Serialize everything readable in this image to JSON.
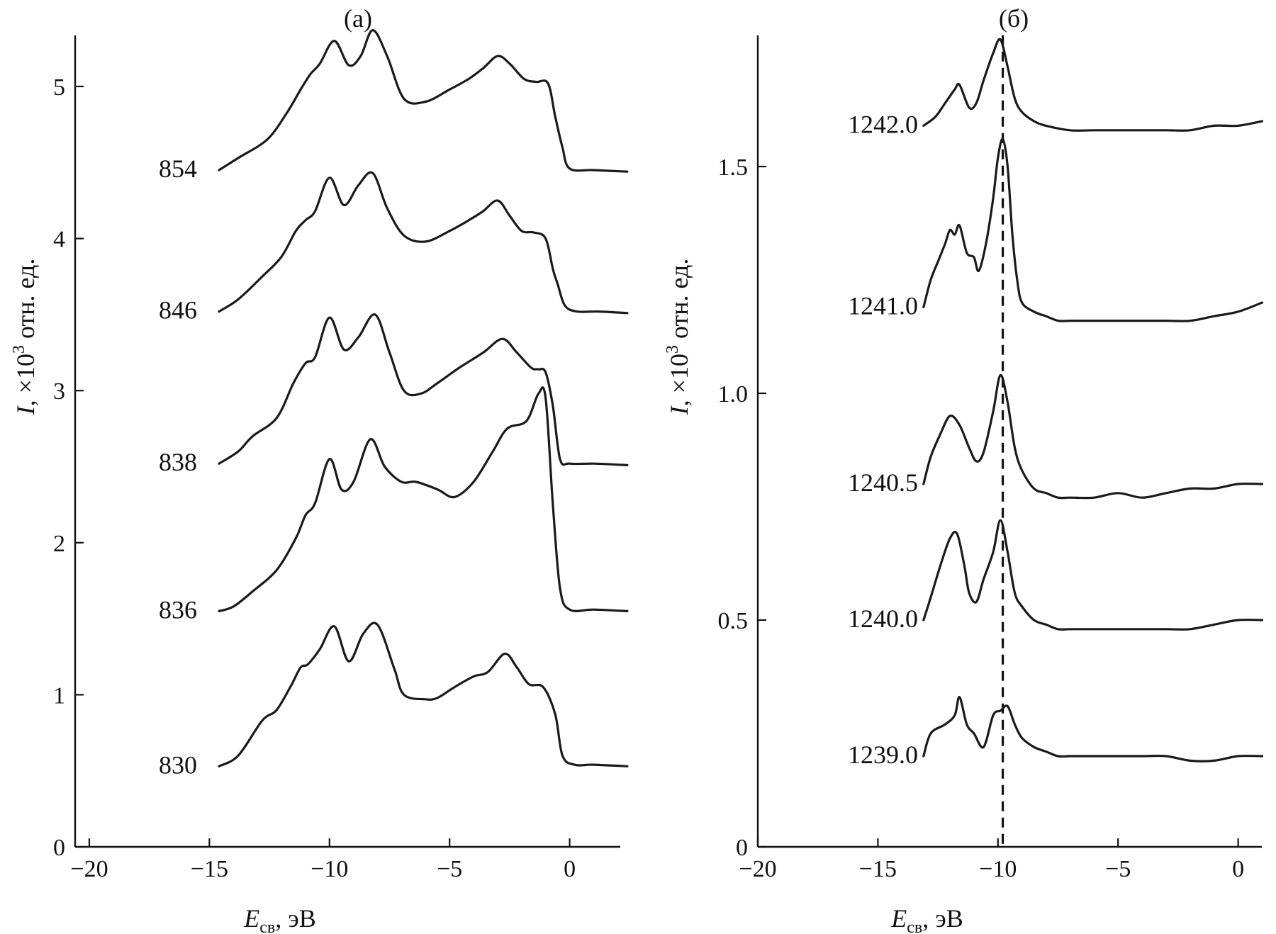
{
  "figure": {
    "y_label_var": "I",
    "y_label_rest": ", ×10",
    "y_label_exp": "3",
    "y_label_unit": " отн. ед.",
    "x_label_var": "E",
    "x_label_sub": "св",
    "x_label_unit": ", эВ"
  },
  "chart_data": [
    {
      "type": "line",
      "title": "(а)",
      "xlabel": "Eсв, эВ",
      "ylabel": "I, ×10^3 отн. ед.",
      "xlim": [
        -20,
        2.8
      ],
      "ylim": [
        0,
        5.5
      ],
      "xticks": [
        -20,
        -15,
        -10,
        -5,
        0
      ],
      "xtick_labels": [
        "−20",
        "−15",
        "−10",
        "−5",
        "0"
      ],
      "yticks": [
        0,
        1,
        2,
        3,
        4,
        5
      ],
      "ytick_labels": [
        "0",
        "1",
        "2",
        "3",
        "4",
        "5"
      ],
      "grid": false,
      "series": [
        {
          "name": "830",
          "x": [
            -14.6,
            -13.8,
            -12.8,
            -12.2,
            -11.6,
            -11.2,
            -10.9,
            -10.4,
            -9.8,
            -9.2,
            -8.6,
            -8.0,
            -7.3,
            -6.9,
            -6.0,
            -5.5,
            -4.8,
            -4.0,
            -3.4,
            -2.7,
            -2.2,
            -1.7,
            -1.1,
            -0.6,
            -0.3,
            0.2,
            1.0,
            2.4
          ],
          "y": [
            0.53,
            0.6,
            0.83,
            0.9,
            1.06,
            1.18,
            1.2,
            1.3,
            1.45,
            1.22,
            1.4,
            1.46,
            1.17,
            1.0,
            0.97,
            0.98,
            1.05,
            1.12,
            1.15,
            1.27,
            1.18,
            1.07,
            1.05,
            0.87,
            0.6,
            0.54,
            0.54,
            0.53
          ]
        },
        {
          "name": "836",
          "x": [
            -14.6,
            -14.0,
            -13.2,
            -12.2,
            -11.4,
            -11.0,
            -10.6,
            -10.0,
            -9.5,
            -9.0,
            -8.3,
            -7.7,
            -7.0,
            -6.4,
            -5.5,
            -4.8,
            -4.0,
            -3.2,
            -2.6,
            -1.8,
            -1.3,
            -1.0,
            -0.7,
            -0.4,
            0.0,
            1.0,
            2.4
          ],
          "y": [
            1.55,
            1.58,
            1.68,
            1.82,
            2.03,
            2.18,
            2.26,
            2.55,
            2.35,
            2.4,
            2.68,
            2.5,
            2.4,
            2.4,
            2.35,
            2.3,
            2.4,
            2.6,
            2.75,
            2.8,
            2.98,
            2.95,
            2.25,
            1.7,
            1.56,
            1.56,
            1.55
          ]
        },
        {
          "name": "838",
          "x": [
            -14.6,
            -13.8,
            -13.2,
            -12.2,
            -11.5,
            -11.0,
            -10.6,
            -10.0,
            -9.4,
            -8.8,
            -8.1,
            -7.5,
            -6.9,
            -6.2,
            -5.5,
            -4.6,
            -3.6,
            -2.8,
            -2.2,
            -1.6,
            -1.3,
            -1.0,
            -0.7,
            -0.4,
            0.0,
            1.0,
            2.4
          ],
          "y": [
            2.52,
            2.6,
            2.7,
            2.82,
            3.05,
            3.18,
            3.22,
            3.48,
            3.27,
            3.35,
            3.5,
            3.25,
            3.0,
            2.98,
            3.05,
            3.15,
            3.25,
            3.34,
            3.25,
            3.15,
            3.14,
            3.12,
            2.9,
            2.55,
            2.52,
            2.52,
            2.51
          ]
        },
        {
          "name": "846",
          "x": [
            -14.6,
            -13.8,
            -12.8,
            -12.0,
            -11.4,
            -11.0,
            -10.6,
            -10.0,
            -9.4,
            -8.8,
            -8.2,
            -7.6,
            -6.9,
            -6.0,
            -5.0,
            -4.2,
            -3.6,
            -3.0,
            -2.5,
            -2.0,
            -1.5,
            -1.0,
            -0.7,
            -0.5,
            -0.2,
            0.3,
            1.2,
            2.4
          ],
          "y": [
            3.52,
            3.6,
            3.75,
            3.88,
            4.05,
            4.12,
            4.18,
            4.4,
            4.22,
            4.35,
            4.43,
            4.2,
            4.02,
            3.98,
            4.05,
            4.12,
            4.18,
            4.25,
            4.15,
            4.05,
            4.04,
            4.0,
            3.8,
            3.7,
            3.56,
            3.52,
            3.52,
            3.51
          ]
        },
        {
          "name": "854",
          "x": [
            -14.6,
            -13.8,
            -12.6,
            -11.8,
            -11.2,
            -10.8,
            -10.4,
            -9.8,
            -9.2,
            -8.7,
            -8.2,
            -7.6,
            -6.9,
            -6.0,
            -5.0,
            -4.2,
            -3.6,
            -3.0,
            -2.5,
            -1.9,
            -1.4,
            -0.9,
            -0.6,
            -0.3,
            0.0,
            1.0,
            2.4
          ],
          "y": [
            4.45,
            4.53,
            4.65,
            4.82,
            4.98,
            5.08,
            5.15,
            5.3,
            5.14,
            5.2,
            5.37,
            5.2,
            4.92,
            4.9,
            4.98,
            5.05,
            5.12,
            5.2,
            5.15,
            5.05,
            5.03,
            5.02,
            4.8,
            4.6,
            4.46,
            4.45,
            4.44
          ]
        }
      ]
    },
    {
      "type": "line",
      "title": "(б)",
      "xlabel": "Eсв, эВ",
      "ylabel": "I, ×10^3 отн. ед.",
      "xlim": [
        -20,
        1.0
      ],
      "ylim": [
        0,
        1.85
      ],
      "xticks": [
        -20,
        -15,
        -10,
        -5,
        0
      ],
      "xtick_labels": [
        "−20",
        "−15",
        "−10",
        "−5",
        "0"
      ],
      "yticks": [
        0,
        0.5,
        1.0,
        1.5
      ],
      "ytick_labels": [
        "0",
        "0.5",
        "1.0",
        "1.5"
      ],
      "grid": false,
      "reference_line_x": -9.8,
      "series": [
        {
          "name": "1239.0",
          "x": [
            -13.1,
            -12.8,
            -12.2,
            -11.8,
            -11.6,
            -11.3,
            -11.0,
            -10.6,
            -10.2,
            -9.9,
            -9.6,
            -9.3,
            -9.0,
            -8.5,
            -8.0,
            -7.5,
            -7.0,
            -6.0,
            -5.0,
            -4.0,
            -3.0,
            -2.0,
            -1.0,
            0.0,
            1.0
          ],
          "y": [
            0.2,
            0.25,
            0.27,
            0.29,
            0.33,
            0.27,
            0.25,
            0.22,
            0.29,
            0.3,
            0.31,
            0.27,
            0.24,
            0.22,
            0.21,
            0.2,
            0.2,
            0.2,
            0.2,
            0.2,
            0.2,
            0.19,
            0.19,
            0.2,
            0.2
          ]
        },
        {
          "name": "1240.0",
          "x": [
            -13.1,
            -12.8,
            -12.4,
            -12.0,
            -11.7,
            -11.4,
            -11.2,
            -10.9,
            -10.6,
            -10.2,
            -9.9,
            -9.6,
            -9.3,
            -9.0,
            -8.5,
            -8.0,
            -7.5,
            -7.0,
            -6.0,
            -5.0,
            -4.0,
            -3.0,
            -2.0,
            -1.0,
            0.0,
            1.0
          ],
          "y": [
            0.5,
            0.55,
            0.62,
            0.68,
            0.69,
            0.62,
            0.56,
            0.54,
            0.59,
            0.65,
            0.72,
            0.65,
            0.56,
            0.53,
            0.5,
            0.49,
            0.48,
            0.48,
            0.48,
            0.48,
            0.48,
            0.48,
            0.48,
            0.49,
            0.5,
            0.5
          ]
        },
        {
          "name": "1240.5",
          "x": [
            -13.1,
            -12.8,
            -12.4,
            -12.0,
            -11.6,
            -11.2,
            -10.9,
            -10.6,
            -10.2,
            -9.9,
            -9.6,
            -9.3,
            -9.0,
            -8.5,
            -8.0,
            -7.5,
            -7.0,
            -6.0,
            -5.0,
            -4.0,
            -3.0,
            -2.0,
            -1.0,
            0.0,
            1.0
          ],
          "y": [
            0.8,
            0.86,
            0.91,
            0.95,
            0.93,
            0.88,
            0.85,
            0.87,
            0.96,
            1.04,
            0.98,
            0.88,
            0.83,
            0.79,
            0.78,
            0.77,
            0.77,
            0.77,
            0.78,
            0.77,
            0.78,
            0.79,
            0.79,
            0.8,
            0.8
          ]
        },
        {
          "name": "1241.0",
          "x": [
            -13.1,
            -12.8,
            -12.5,
            -12.2,
            -12.0,
            -11.8,
            -11.6,
            -11.3,
            -11.0,
            -10.8,
            -10.5,
            -10.2,
            -10.0,
            -9.8,
            -9.6,
            -9.4,
            -9.2,
            -9.0,
            -8.5,
            -8.0,
            -7.5,
            -7.0,
            -6.0,
            -5.0,
            -4.0,
            -3.0,
            -2.0,
            -1.0,
            0.0,
            1.0
          ],
          "y": [
            1.19,
            1.25,
            1.29,
            1.33,
            1.36,
            1.35,
            1.37,
            1.31,
            1.3,
            1.27,
            1.33,
            1.43,
            1.52,
            1.56,
            1.5,
            1.35,
            1.25,
            1.2,
            1.18,
            1.17,
            1.16,
            1.16,
            1.16,
            1.16,
            1.16,
            1.16,
            1.16,
            1.17,
            1.18,
            1.2
          ]
        },
        {
          "name": "1242.0",
          "x": [
            -13.1,
            -12.6,
            -12.2,
            -11.8,
            -11.6,
            -11.2,
            -10.9,
            -10.6,
            -10.2,
            -9.9,
            -9.6,
            -9.3,
            -9.0,
            -8.5,
            -8.0,
            -7.0,
            -6.0,
            -5.0,
            -4.0,
            -3.0,
            -2.0,
            -1.0,
            0.0,
            1.0
          ],
          "y": [
            1.59,
            1.61,
            1.64,
            1.67,
            1.68,
            1.63,
            1.64,
            1.69,
            1.75,
            1.78,
            1.72,
            1.65,
            1.62,
            1.6,
            1.59,
            1.58,
            1.58,
            1.58,
            1.58,
            1.58,
            1.58,
            1.59,
            1.59,
            1.6
          ]
        }
      ]
    }
  ]
}
